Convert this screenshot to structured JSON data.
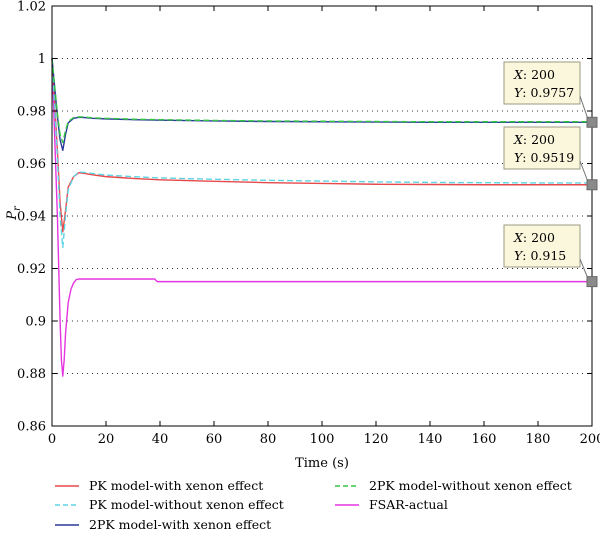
{
  "chart_data": {
    "type": "line",
    "xlabel": "Time (s)",
    "ylabel": "P",
    "ylabel_sub": "r",
    "xlim": [
      0,
      200
    ],
    "ylim": [
      0.86,
      1.02
    ],
    "x_ticks": [
      "0",
      "20",
      "40",
      "60",
      "80",
      "100",
      "120",
      "140",
      "160",
      "180",
      "200"
    ],
    "y_ticks": [
      "0.86",
      "0.88",
      "0.9",
      "0.92",
      "0.94",
      "0.96",
      "0.98",
      "1",
      "1.02"
    ],
    "grid": "horizontal-dotted",
    "legend_position": "bottom",
    "series": [
      {
        "name": "PK model-with xenon effect",
        "color": "#e8484b",
        "dash": "solid",
        "x": [
          0,
          2,
          3,
          4,
          5,
          6,
          8,
          10,
          12,
          15,
          20,
          30,
          40,
          60,
          80,
          100,
          120,
          140,
          160,
          180,
          200
        ],
        "y": [
          1.0,
          0.965,
          0.945,
          0.934,
          0.942,
          0.951,
          0.955,
          0.9565,
          0.9562,
          0.9557,
          0.955,
          0.9543,
          0.9538,
          0.9532,
          0.9527,
          0.9524,
          0.9521,
          0.952,
          0.9519,
          0.9519,
          0.9519
        ]
      },
      {
        "name": "PK model-without xenon effect",
        "color": "#5fd4e3",
        "dash": "dashed",
        "x": [
          0,
          2,
          3,
          4,
          5,
          6,
          8,
          10,
          12,
          15,
          20,
          30,
          40,
          60,
          80,
          100,
          120,
          140,
          160,
          180,
          200
        ],
        "y": [
          1.0,
          0.962,
          0.94,
          0.928,
          0.94,
          0.95,
          0.955,
          0.9568,
          0.9566,
          0.9562,
          0.9556,
          0.955,
          0.9545,
          0.954,
          0.9536,
          0.9533,
          0.953,
          0.9528,
          0.9527,
          0.9526,
          0.9526
        ]
      },
      {
        "name": "2PK model-with xenon effect",
        "color": "#2b3a9a",
        "dash": "solid",
        "x": [
          0,
          2,
          3,
          4,
          5,
          6,
          8,
          10,
          12,
          15,
          20,
          30,
          40,
          60,
          80,
          100,
          120,
          140,
          160,
          180,
          200
        ],
        "y": [
          1.0,
          0.978,
          0.969,
          0.965,
          0.971,
          0.9755,
          0.9772,
          0.9776,
          0.9775,
          0.9772,
          0.977,
          0.9767,
          0.9765,
          0.9762,
          0.976,
          0.9759,
          0.9758,
          0.9757,
          0.9757,
          0.9757,
          0.9757
        ]
      },
      {
        "name": "2PK model-without xenon effect",
        "color": "#35c545",
        "dash": "dashed",
        "x": [
          0,
          2,
          3,
          4,
          5,
          6,
          8,
          10,
          12,
          15,
          20,
          30,
          40,
          60,
          80,
          100,
          120,
          140,
          160,
          180,
          200
        ],
        "y": [
          1.0,
          0.979,
          0.971,
          0.968,
          0.9725,
          0.976,
          0.9775,
          0.9778,
          0.9777,
          0.9774,
          0.9772,
          0.9769,
          0.9767,
          0.9764,
          0.9762,
          0.9761,
          0.976,
          0.9759,
          0.9759,
          0.9759,
          0.9759
        ]
      },
      {
        "name": "FSAR-actual",
        "color": "#e535e0",
        "dash": "solid",
        "x": [
          0,
          1,
          2,
          3,
          3.5,
          4,
          4.5,
          5,
          6,
          7,
          8,
          9,
          10,
          20,
          30,
          38,
          39,
          50,
          100,
          150,
          200
        ],
        "y": [
          1.0,
          0.97,
          0.94,
          0.9,
          0.885,
          0.879,
          0.885,
          0.895,
          0.907,
          0.912,
          0.9145,
          0.9158,
          0.916,
          0.916,
          0.916,
          0.916,
          0.915,
          0.915,
          0.915,
          0.915,
          0.915
        ]
      }
    ],
    "datatips": [
      {
        "x_label": "X",
        "x_value": "200",
        "y_label": "Y",
        "y_value": "0.9757",
        "point_x": 200,
        "point_y": 0.9757
      },
      {
        "x_label": "X",
        "x_value": "200",
        "y_label": "Y",
        "y_value": "0.9519",
        "point_x": 200,
        "point_y": 0.9519
      },
      {
        "x_label": "X",
        "x_value": "200",
        "y_label": "Y",
        "y_value": "0.915",
        "point_x": 200,
        "point_y": 0.915
      }
    ]
  }
}
